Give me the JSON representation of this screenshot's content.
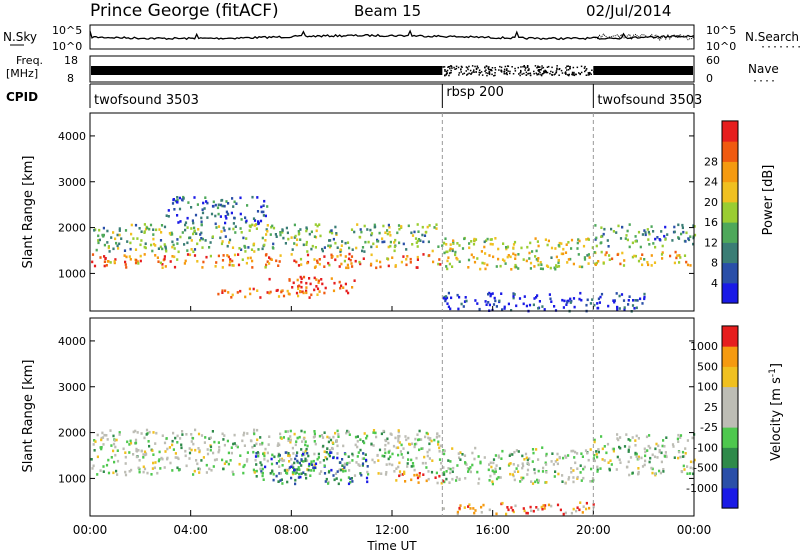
{
  "header": {
    "station": "Prince George (fitACF)",
    "beam": "Beam 15",
    "date": "02/Jul/2014"
  },
  "strip_nsky": {
    "left_label": "N.Sky",
    "right_label": "N.Search",
    "right_dots": "·······",
    "left_ticks": [
      "10^5",
      "10^0"
    ],
    "right_ticks": [
      "10^5",
      "10^0"
    ]
  },
  "strip_freq": {
    "left_label_line1": "Freq.",
    "left_label_line2": "[MHz]",
    "left_ticks": [
      "18",
      "8"
    ],
    "right_label": "Nave",
    "right_dots": "····",
    "right_ticks": [
      "60",
      "0"
    ]
  },
  "cpid": {
    "label": "CPID",
    "segments": [
      {
        "name": "twofsound 3503",
        "start_hour": 0,
        "end_hour": 14
      },
      {
        "name": "rbsp 200",
        "start_hour": 14,
        "end_hour": 20
      },
      {
        "name": "twofsound 3503",
        "start_hour": 20,
        "end_hour": 24
      }
    ]
  },
  "chart_data": [
    {
      "type": "heatmap",
      "panel": "power",
      "ylabel": "Slant Range [km]",
      "xlabel": "",
      "xlim_hours": [
        0,
        24
      ],
      "ylim": [
        180,
        4500
      ],
      "y_ticks": [
        1000,
        2000,
        3000,
        4000
      ],
      "colorbar": {
        "label": "Power [dB]",
        "ticks": [
          "4",
          "8",
          "12",
          "16",
          "20",
          "24",
          "28"
        ],
        "colors": [
          "#1a1ae6",
          "#2a4fa8",
          "#3a7d75",
          "#4ea85a",
          "#9acd32",
          "#f0c020",
          "#f59a10",
          "#f05a10",
          "#e61e1e"
        ]
      },
      "bands": [
        {
          "t0": 0,
          "t1": 14,
          "y0": 1150,
          "y1": 1450,
          "level": 0.75
        },
        {
          "t0": 0,
          "t1": 14,
          "y0": 1500,
          "y1": 2100,
          "level": 0.4
        },
        {
          "t0": 7,
          "t1": 10.5,
          "y0": 600,
          "y1": 950,
          "level": 0.9
        },
        {
          "t0": 5,
          "t1": 9,
          "y0": 500,
          "y1": 700,
          "level": 0.8
        },
        {
          "t0": 14,
          "t1": 20,
          "y0": 1100,
          "y1": 1800,
          "level": 0.55
        },
        {
          "t0": 20,
          "t1": 24,
          "y0": 1200,
          "y1": 1500,
          "level": 0.65
        },
        {
          "t0": 20,
          "t1": 24,
          "y0": 1600,
          "y1": 2100,
          "level": 0.3
        },
        {
          "t0": 3,
          "t1": 7,
          "y0": 2100,
          "y1": 2700,
          "level": 0.2
        },
        {
          "t0": 14,
          "t1": 22,
          "y0": 200,
          "y1": 600,
          "level": 0.1
        }
      ]
    },
    {
      "type": "heatmap",
      "panel": "velocity",
      "ylabel": "Slant Range [km]",
      "xlabel": "Time UT",
      "xlim_hours": [
        0,
        24
      ],
      "ylim": [
        180,
        4500
      ],
      "y_ticks": [
        1000,
        2000,
        3000,
        4000
      ],
      "x_ticks": [
        "00:00",
        "04:00",
        "08:00",
        "12:00",
        "16:00",
        "20:00",
        "00:00"
      ],
      "colorbar": {
        "label": "Velocity [m s^-1]",
        "ticks": [
          "1000",
          "500",
          "100",
          "25",
          "-25",
          "-100",
          "-500",
          "-1000"
        ],
        "colors": [
          "#1a1ae6",
          "#2a4fa8",
          "#2f8a4a",
          "#4ec84e",
          "#bdbdb5",
          "#bdbdb5",
          "#f0c020",
          "#f59a10",
          "#e61e1e"
        ]
      },
      "bands": [
        {
          "t0": 0,
          "t1": 14,
          "y0": 1100,
          "y1": 2100,
          "level": 0.5
        },
        {
          "t0": 6.5,
          "t1": 11,
          "y0": 900,
          "y1": 1600,
          "level": 0.25
        },
        {
          "t0": 14,
          "t1": 20,
          "y0": 900,
          "y1": 1700,
          "level": 0.5
        },
        {
          "t0": 20,
          "t1": 24,
          "y0": 1100,
          "y1": 2000,
          "level": 0.5
        },
        {
          "t0": 12,
          "t1": 14,
          "y0": 900,
          "y1": 1200,
          "level": 0.8
        },
        {
          "t0": 14,
          "t1": 20,
          "y0": 250,
          "y1": 500,
          "level": 0.78
        }
      ]
    }
  ]
}
